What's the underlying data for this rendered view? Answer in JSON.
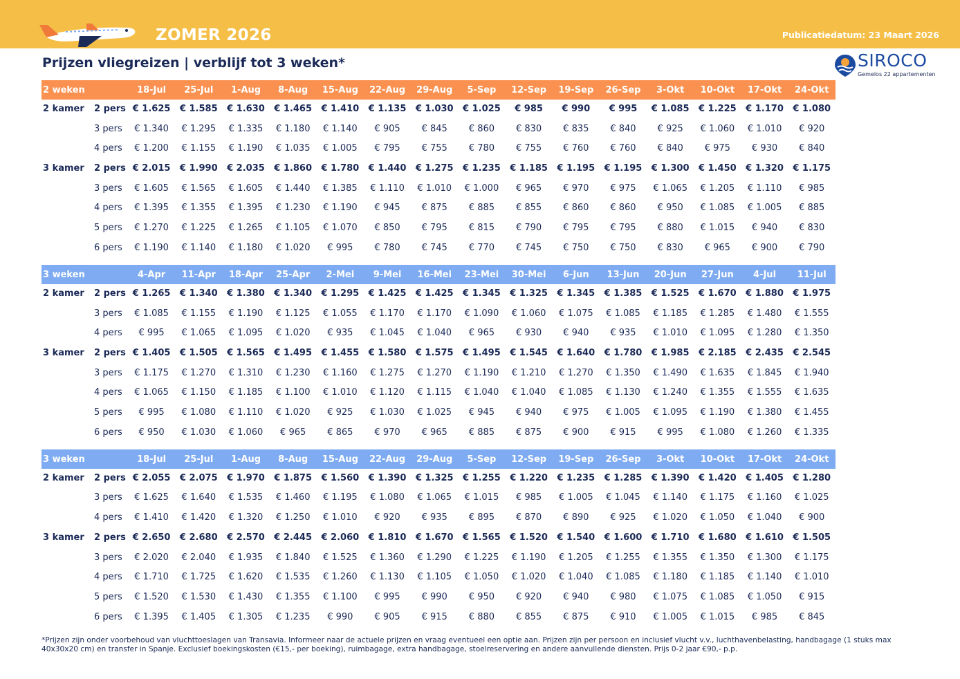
{
  "header": {
    "title": "ZOMER 2026",
    "date": "Publicatiedatum: 23 Maart 2026",
    "logo": "SIROCO",
    "tagline": "Gemelos 22 appartementen"
  },
  "subtitle": "Prijzen vliegreizen | verblijf tot 3 weken*",
  "sections": [
    {
      "label": "2 weken",
      "dates": [
        "18-Jul",
        "25-Jul",
        "1-Aug",
        "8-Aug",
        "15-Aug",
        "22-Aug",
        "29-Aug",
        "5-Sep",
        "12-Sep",
        "19-Sep",
        "26-Sep",
        "3-Okt",
        "10-Okt",
        "17-Okt",
        "24-Okt"
      ],
      "groups": [
        {
          "kamer": "2 kamer",
          "rows": [
            {
              "pers": "2 pers",
              "prices": [
                "€ 1.625",
                "€ 1.585",
                "€ 1.630",
                "€ 1.465",
                "€ 1.410",
                "€ 1.135",
                "€ 1.030",
                "€ 1.025",
                "€ 985",
                "€ 990",
                "€ 995",
                "€ 1.085",
                "€ 1.225",
                "€ 1.170",
                "€ 1.080"
              ]
            },
            {
              "pers": "3 pers",
              "prices": [
                "€ 1.340",
                "€ 1.295",
                "€ 1.335",
                "€ 1.180",
                "€ 1.140",
                "€ 905",
                "€ 845",
                "€ 860",
                "€ 830",
                "€ 835",
                "€ 840",
                "€ 925",
                "€ 1.060",
                "€ 1.010",
                "€ 920"
              ]
            },
            {
              "pers": "4 pers",
              "prices": [
                "€ 1.200",
                "€ 1.155",
                "€ 1.190",
                "€ 1.035",
                "€ 1.005",
                "€ 795",
                "€ 755",
                "€ 780",
                "€ 755",
                "€ 760",
                "€ 760",
                "€ 840",
                "€ 975",
                "€ 930",
                "€ 840"
              ]
            }
          ]
        },
        {
          "kamer": "3 kamer",
          "rows": [
            {
              "pers": "2 pers",
              "prices": [
                "€ 2.015",
                "€ 1.990",
                "€ 2.035",
                "€ 1.860",
                "€ 1.780",
                "€ 1.440",
                "€ 1.275",
                "€ 1.235",
                "€ 1.185",
                "€ 1.195",
                "€ 1.195",
                "€ 1.300",
                "€ 1.450",
                "€ 1.320",
                "€ 1.175"
              ]
            },
            {
              "pers": "3 pers",
              "prices": [
                "€ 1.605",
                "€ 1.565",
                "€ 1.605",
                "€ 1.440",
                "€ 1.385",
                "€ 1.110",
                "€ 1.010",
                "€ 1.000",
                "€ 965",
                "€ 970",
                "€ 975",
                "€ 1.065",
                "€ 1.205",
                "€ 1.110",
                "€ 985"
              ]
            },
            {
              "pers": "4 pers",
              "prices": [
                "€ 1.395",
                "€ 1.355",
                "€ 1.395",
                "€ 1.230",
                "€ 1.190",
                "€ 945",
                "€ 875",
                "€ 885",
                "€ 855",
                "€ 860",
                "€ 860",
                "€ 950",
                "€ 1.085",
                "€ 1.005",
                "€ 885"
              ]
            },
            {
              "pers": "5 pers",
              "prices": [
                "€ 1.270",
                "€ 1.225",
                "€ 1.265",
                "€ 1.105",
                "€ 1.070",
                "€ 850",
                "€ 795",
                "€ 815",
                "€ 790",
                "€ 795",
                "€ 795",
                "€ 880",
                "€ 1.015",
                "€ 940",
                "€ 830"
              ]
            },
            {
              "pers": "6 pers",
              "prices": [
                "€ 1.190",
                "€ 1.140",
                "€ 1.180",
                "€ 1.020",
                "€ 995",
                "€ 780",
                "€ 745",
                "€ 770",
                "€ 745",
                "€ 750",
                "€ 750",
                "€ 830",
                "€ 965",
                "€ 900",
                "€ 790"
              ]
            }
          ]
        }
      ]
    },
    {
      "label": "3 weken",
      "dates": [
        "4-Apr",
        "11-Apr",
        "18-Apr",
        "25-Apr",
        "2-Mei",
        "9-Mei",
        "16-Mei",
        "23-Mei",
        "30-Mei",
        "6-Jun",
        "13-Jun",
        "20-Jun",
        "27-Jun",
        "4-Jul",
        "11-Jul"
      ],
      "groups": [
        {
          "kamer": "2 kamer",
          "rows": [
            {
              "pers": "2 pers",
              "prices": [
                "€ 1.265",
                "€ 1.340",
                "€ 1.380",
                "€ 1.340",
                "€ 1.295",
                "€ 1.425",
                "€ 1.425",
                "€ 1.345",
                "€ 1.325",
                "€ 1.345",
                "€ 1.385",
                "€ 1.525",
                "€ 1.670",
                "€ 1.880",
                "€ 1.975"
              ]
            },
            {
              "pers": "3 pers",
              "prices": [
                "€ 1.085",
                "€ 1.155",
                "€ 1.190",
                "€ 1.125",
                "€ 1.055",
                "€ 1.170",
                "€ 1.170",
                "€ 1.090",
                "€ 1.060",
                "€ 1.075",
                "€ 1.085",
                "€ 1.185",
                "€ 1.285",
                "€ 1.480",
                "€ 1.555"
              ]
            },
            {
              "pers": "4 pers",
              "prices": [
                "€ 995",
                "€ 1.065",
                "€ 1.095",
                "€ 1.020",
                "€ 935",
                "€ 1.045",
                "€ 1.040",
                "€ 965",
                "€ 930",
                "€ 940",
                "€ 935",
                "€ 1.010",
                "€ 1.095",
                "€ 1.280",
                "€ 1.350"
              ]
            }
          ]
        },
        {
          "kamer": "3 kamer",
          "rows": [
            {
              "pers": "2 pers",
              "prices": [
                "€ 1.405",
                "€ 1.505",
                "€ 1.565",
                "€ 1.495",
                "€ 1.455",
                "€ 1.580",
                "€ 1.575",
                "€ 1.495",
                "€ 1.545",
                "€ 1.640",
                "€ 1.780",
                "€ 1.985",
                "€ 2.185",
                "€ 2.435",
                "€ 2.545"
              ]
            },
            {
              "pers": "3 pers",
              "prices": [
                "€ 1.175",
                "€ 1.270",
                "€ 1.310",
                "€ 1.230",
                "€ 1.160",
                "€ 1.275",
                "€ 1.270",
                "€ 1.190",
                "€ 1.210",
                "€ 1.270",
                "€ 1.350",
                "€ 1.490",
                "€ 1.635",
                "€ 1.845",
                "€ 1.940"
              ]
            },
            {
              "pers": "4 pers",
              "prices": [
                "€ 1.065",
                "€ 1.150",
                "€ 1.185",
                "€ 1.100",
                "€ 1.010",
                "€ 1.120",
                "€ 1.115",
                "€ 1.040",
                "€ 1.040",
                "€ 1.085",
                "€ 1.130",
                "€ 1.240",
                "€ 1.355",
                "€ 1.555",
                "€ 1.635"
              ]
            },
            {
              "pers": "5 pers",
              "prices": [
                "€ 995",
                "€ 1.080",
                "€ 1.110",
                "€ 1.020",
                "€ 925",
                "€ 1.030",
                "€ 1.025",
                "€ 945",
                "€ 940",
                "€ 975",
                "€ 1.005",
                "€ 1.095",
                "€ 1.190",
                "€ 1.380",
                "€ 1.455"
              ]
            },
            {
              "pers": "6 pers",
              "prices": [
                "€ 950",
                "€ 1.030",
                "€ 1.060",
                "€ 965",
                "€ 865",
                "€ 970",
                "€ 965",
                "€ 885",
                "€ 875",
                "€ 900",
                "€ 915",
                "€ 995",
                "€ 1.080",
                "€ 1.260",
                "€ 1.335"
              ]
            }
          ]
        }
      ]
    },
    {
      "label": "3 weken",
      "dates": [
        "18-Jul",
        "25-Jul",
        "1-Aug",
        "8-Aug",
        "15-Aug",
        "22-Aug",
        "29-Aug",
        "5-Sep",
        "12-Sep",
        "19-Sep",
        "26-Sep",
        "3-Okt",
        "10-Okt",
        "17-Okt",
        "24-Okt"
      ],
      "groups": [
        {
          "kamer": "2 kamer",
          "rows": [
            {
              "pers": "2 pers",
              "prices": [
                "€ 2.055",
                "€ 2.075",
                "€ 1.970",
                "€ 1.875",
                "€ 1.560",
                "€ 1.390",
                "€ 1.325",
                "€ 1.255",
                "€ 1.220",
                "€ 1.235",
                "€ 1.285",
                "€ 1.390",
                "€ 1.420",
                "€ 1.405",
                "€ 1.280"
              ]
            },
            {
              "pers": "3 pers",
              "prices": [
                "€ 1.625",
                "€ 1.640",
                "€ 1.535",
                "€ 1.460",
                "€ 1.195",
                "€ 1.080",
                "€ 1.065",
                "€ 1.015",
                "€ 985",
                "€ 1.005",
                "€ 1.045",
                "€ 1.140",
                "€ 1.175",
                "€ 1.160",
                "€ 1.025"
              ]
            },
            {
              "pers": "4 pers",
              "prices": [
                "€ 1.410",
                "€ 1.420",
                "€ 1.320",
                "€ 1.250",
                "€ 1.010",
                "€ 920",
                "€ 935",
                "€ 895",
                "€ 870",
                "€ 890",
                "€ 925",
                "€ 1.020",
                "€ 1.050",
                "€ 1.040",
                "€ 900"
              ]
            }
          ]
        },
        {
          "kamer": "3 kamer",
          "rows": [
            {
              "pers": "2 pers",
              "prices": [
                "€ 2.650",
                "€ 2.680",
                "€ 2.570",
                "€ 2.445",
                "€ 2.060",
                "€ 1.810",
                "€ 1.670",
                "€ 1.565",
                "€ 1.520",
                "€ 1.540",
                "€ 1.600",
                "€ 1.710",
                "€ 1.680",
                "€ 1.610",
                "€ 1.505"
              ]
            },
            {
              "pers": "3 pers",
              "prices": [
                "€ 2.020",
                "€ 2.040",
                "€ 1.935",
                "€ 1.840",
                "€ 1.525",
                "€ 1.360",
                "€ 1.290",
                "€ 1.225",
                "€ 1.190",
                "€ 1.205",
                "€ 1.255",
                "€ 1.355",
                "€ 1.350",
                "€ 1.300",
                "€ 1.175"
              ]
            },
            {
              "pers": "4 pers",
              "prices": [
                "€ 1.710",
                "€ 1.725",
                "€ 1.620",
                "€ 1.535",
                "€ 1.260",
                "€ 1.130",
                "€ 1.105",
                "€ 1.050",
                "€ 1.020",
                "€ 1.040",
                "€ 1.085",
                "€ 1.180",
                "€ 1.185",
                "€ 1.140",
                "€ 1.010"
              ]
            },
            {
              "pers": "5 pers",
              "prices": [
                "€ 1.520",
                "€ 1.530",
                "€ 1.430",
                "€ 1.355",
                "€ 1.100",
                "€ 995",
                "€ 990",
                "€ 950",
                "€ 920",
                "€ 940",
                "€ 980",
                "€ 1.075",
                "€ 1.085",
                "€ 1.050",
                "€ 915"
              ]
            },
            {
              "pers": "6 pers",
              "prices": [
                "€ 1.395",
                "€ 1.405",
                "€ 1.305",
                "€ 1.235",
                "€ 990",
                "€ 905",
                "€ 915",
                "€ 880",
                "€ 855",
                "€ 875",
                "€ 910",
                "€ 1.005",
                "€ 1.015",
                "€ 985",
                "€ 845"
              ]
            }
          ]
        }
      ]
    }
  ],
  "footnote": "*Prijzen zijn onder voorbehoud van vluchttoeslagen van Transavia. Informeer naar de actuele prijzen en vraag eventueel een optie aan. Prijzen zijn per persoon en inclusief vlucht v.v., luchthavenbelasting, handbagage (1 stuks max 40x30x20 cm) en transfer in Spanje. Exclusief boekingskosten (€15,- per boeking), ruimbagage, extra handbagage, stoelreservering en andere aanvullende diensten. Prijs 0-2 jaar €90,- p.p."
}
